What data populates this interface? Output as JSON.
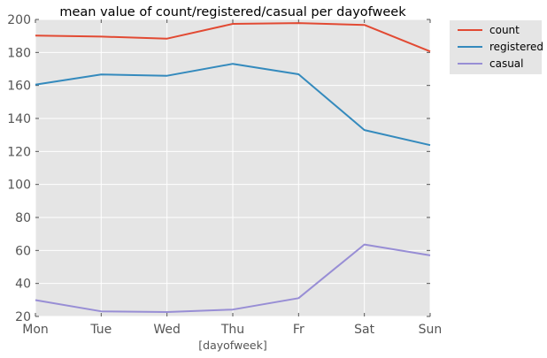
{
  "chart_data": {
    "type": "line",
    "title": "mean value of count/registered/casual per dayofweek",
    "xlabel": "[dayofweek]",
    "ylabel": "",
    "categories": [
      "Mon",
      "Tue",
      "Wed",
      "Thu",
      "Fr",
      "Sat",
      "Sun"
    ],
    "ylim": [
      20,
      200
    ],
    "yticks": [
      20,
      40,
      60,
      80,
      100,
      120,
      140,
      160,
      180,
      200
    ],
    "grid": true,
    "legend_position": "outside-top-right",
    "colors": {
      "background": "#e5e5e5",
      "grid": "#ffffff"
    },
    "series": [
      {
        "name": "count",
        "color": "#e24a33",
        "values": [
          190.2,
          189.6,
          188.4,
          197.3,
          197.8,
          196.7,
          180.6
        ]
      },
      {
        "name": "registered",
        "color": "#348abd",
        "values": [
          160.5,
          166.7,
          165.9,
          173.1,
          166.8,
          133.0,
          123.8
        ]
      },
      {
        "name": "casual",
        "color": "#988ed5",
        "values": [
          29.9,
          23.1,
          22.7,
          24.2,
          31.1,
          63.6,
          57.0
        ]
      }
    ]
  }
}
